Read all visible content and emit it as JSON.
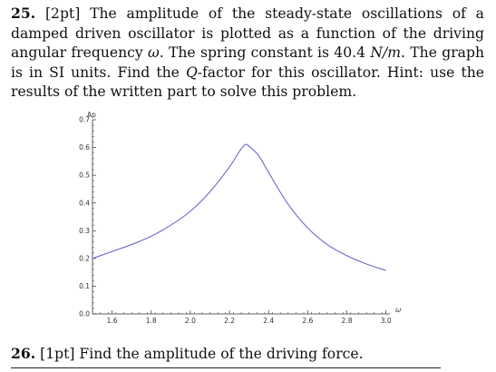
{
  "problem25": {
    "number": "25.",
    "points": "[2pt]",
    "text_a": "The amplitude of the steady-state oscillations of a damped driven oscillator is plotted as a function of the driving angular frequency ",
    "omega": "ω",
    "text_b": ". The spring constant is 40.4 ",
    "unit": "N/m",
    "text_c": ". The graph is in SI units. Find the ",
    "q": "Q",
    "text_d": "-factor for this oscillator. Hint: use the results of the written part to solve this problem."
  },
  "problem26": {
    "number": "26.",
    "points": "[1pt]",
    "text": "Find the amplitude of the driving force."
  },
  "chart_data": {
    "type": "line",
    "title": "",
    "xlabel": "ω",
    "ylabel": "Ap",
    "xlim": [
      1.5,
      3.02
    ],
    "ylim": [
      0.0,
      0.7
    ],
    "x_ticks": [
      "1.6",
      "1.8",
      "2.0",
      "2.2",
      "2.4",
      "2.6",
      "2.8",
      "3.0"
    ],
    "y_ticks": [
      "0.0",
      "0.1",
      "0.2",
      "0.3",
      "0.4",
      "0.5",
      "0.6",
      "0.7"
    ],
    "grid": false,
    "series": [
      {
        "color": "#6a6acb",
        "x": [
          1.5,
          1.6,
          1.7,
          1.8,
          1.9,
          2.0,
          2.1,
          2.2,
          2.25,
          2.28,
          2.3,
          2.35,
          2.4,
          2.5,
          2.6,
          2.7,
          2.8,
          2.9,
          3.0
        ],
        "y": [
          0.2,
          0.225,
          0.25,
          0.28,
          0.32,
          0.37,
          0.44,
          0.53,
          0.585,
          0.61,
          0.605,
          0.57,
          0.51,
          0.395,
          0.31,
          0.25,
          0.21,
          0.18,
          0.157
        ]
      }
    ]
  }
}
